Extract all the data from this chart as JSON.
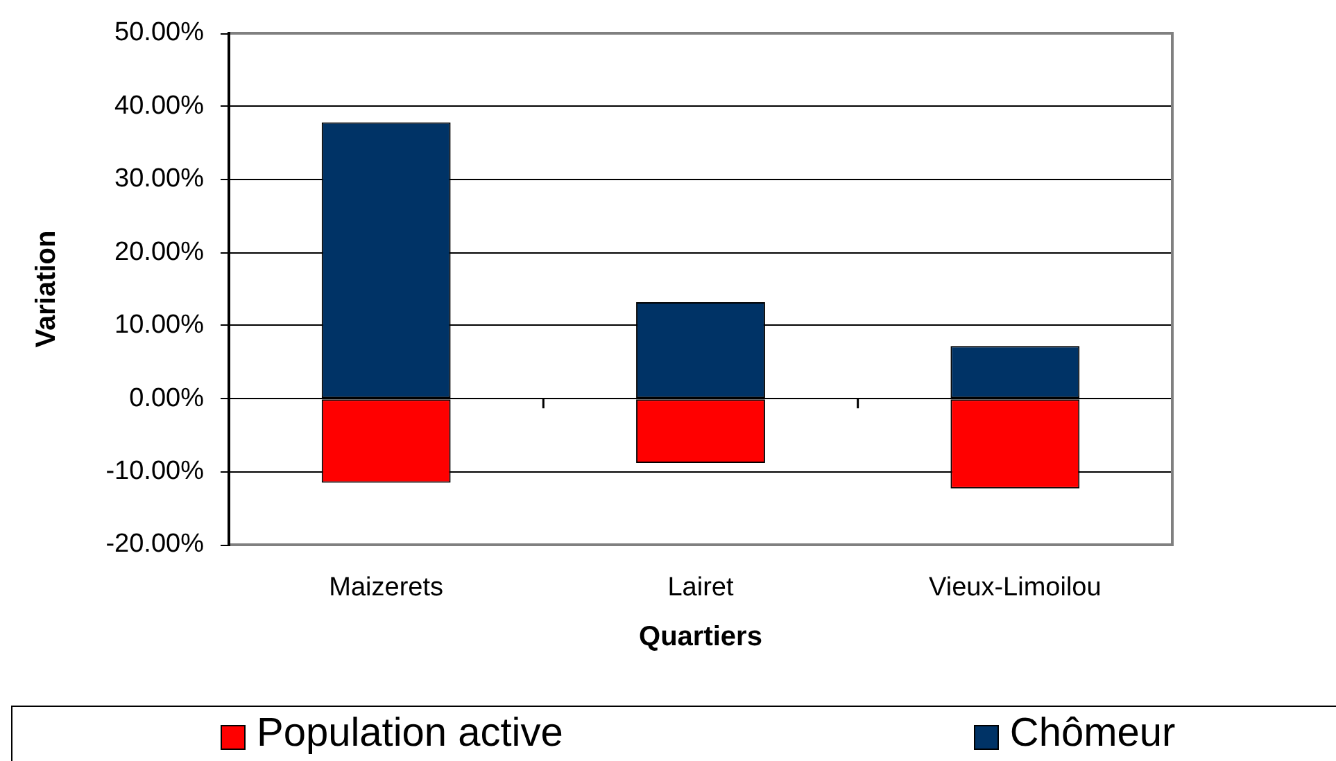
{
  "chart_data": {
    "type": "bar",
    "xlabel": "Quartiers",
    "ylabel": "Variation",
    "categories": [
      "Maizerets",
      "Lairet",
      "Vieux-Limoilou"
    ],
    "stacked": true,
    "series": [
      {
        "name": "Population active",
        "color": "#ff0000",
        "values": [
          -11.5,
          -8.8,
          -12.3
        ]
      },
      {
        "name": "Chômeur",
        "color": "#003366",
        "values": [
          37.8,
          13.2,
          7.2
        ]
      }
    ],
    "ylim": [
      -20,
      50
    ],
    "yticks": [
      {
        "value": -20,
        "label": "-20.00%"
      },
      {
        "value": -10,
        "label": "-10.00%"
      },
      {
        "value": 0,
        "label": "0.00%"
      },
      {
        "value": 10,
        "label": "10.00%"
      },
      {
        "value": 20,
        "label": "20.00%"
      },
      {
        "value": 30,
        "label": "30.00%"
      },
      {
        "value": 40,
        "label": "40.00%"
      },
      {
        "value": 50,
        "label": "50.00%"
      }
    ],
    "grid": "y",
    "legend": "bottom"
  }
}
